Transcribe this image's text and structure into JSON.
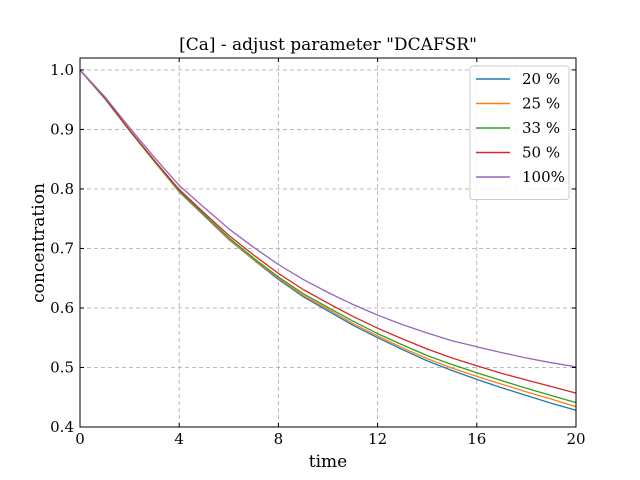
{
  "chart_data": {
    "type": "line",
    "title": "[Ca] - adjust parameter \"DCAFSR\"",
    "xlabel": "time",
    "ylabel": "concentration",
    "xlim": [
      0,
      20
    ],
    "ylim": [
      0.4,
      1.02
    ],
    "xticks": [
      0,
      4,
      8,
      12,
      16,
      20
    ],
    "xtick_labels": [
      "0",
      "4",
      "8",
      "12",
      "16",
      "20"
    ],
    "yticks": [
      0.4,
      0.5,
      0.6,
      0.7,
      0.8,
      0.9,
      1.0
    ],
    "ytick_labels": [
      "0.4",
      "0.5",
      "0.6",
      "0.7",
      "0.8",
      "0.9",
      "1.0"
    ],
    "grid": true,
    "grid_style": "dashed",
    "legend_position": "top-right",
    "x": [
      0,
      1,
      2,
      3,
      4,
      5,
      6,
      7,
      8,
      9,
      10,
      11,
      12,
      13,
      14,
      15,
      16,
      17,
      18,
      19,
      20
    ],
    "series": [
      {
        "name": "20 %",
        "color": "#1f77b4",
        "values": [
          1.0,
          0.952,
          0.898,
          0.846,
          0.795,
          0.755,
          0.715,
          0.681,
          0.648,
          0.619,
          0.595,
          0.571,
          0.55,
          0.53,
          0.511,
          0.495,
          0.48,
          0.466,
          0.453,
          0.44,
          0.428
        ]
      },
      {
        "name": "25 %",
        "color": "#ff7f0e",
        "values": [
          1.0,
          0.952,
          0.898,
          0.846,
          0.796,
          0.756,
          0.716,
          0.682,
          0.65,
          0.621,
          0.598,
          0.574,
          0.553,
          0.533,
          0.515,
          0.499,
          0.485,
          0.472,
          0.459,
          0.447,
          0.434
        ]
      },
      {
        "name": "33 %",
        "color": "#2ca02c",
        "values": [
          1.0,
          0.952,
          0.898,
          0.847,
          0.797,
          0.757,
          0.718,
          0.684,
          0.652,
          0.624,
          0.601,
          0.578,
          0.557,
          0.538,
          0.52,
          0.505,
          0.491,
          0.478,
          0.465,
          0.453,
          0.441
        ]
      },
      {
        "name": "50 %",
        "color": "#d62728",
        "values": [
          1.0,
          0.953,
          0.899,
          0.848,
          0.799,
          0.76,
          0.722,
          0.689,
          0.658,
          0.631,
          0.608,
          0.586,
          0.566,
          0.548,
          0.531,
          0.516,
          0.503,
          0.49,
          0.479,
          0.468,
          0.457
        ]
      },
      {
        "name": "100%",
        "color": "#9467bd",
        "values": [
          1.0,
          0.955,
          0.903,
          0.853,
          0.806,
          0.769,
          0.733,
          0.702,
          0.673,
          0.648,
          0.626,
          0.606,
          0.588,
          0.572,
          0.558,
          0.545,
          0.535,
          0.525,
          0.516,
          0.508,
          0.501
        ]
      }
    ]
  }
}
